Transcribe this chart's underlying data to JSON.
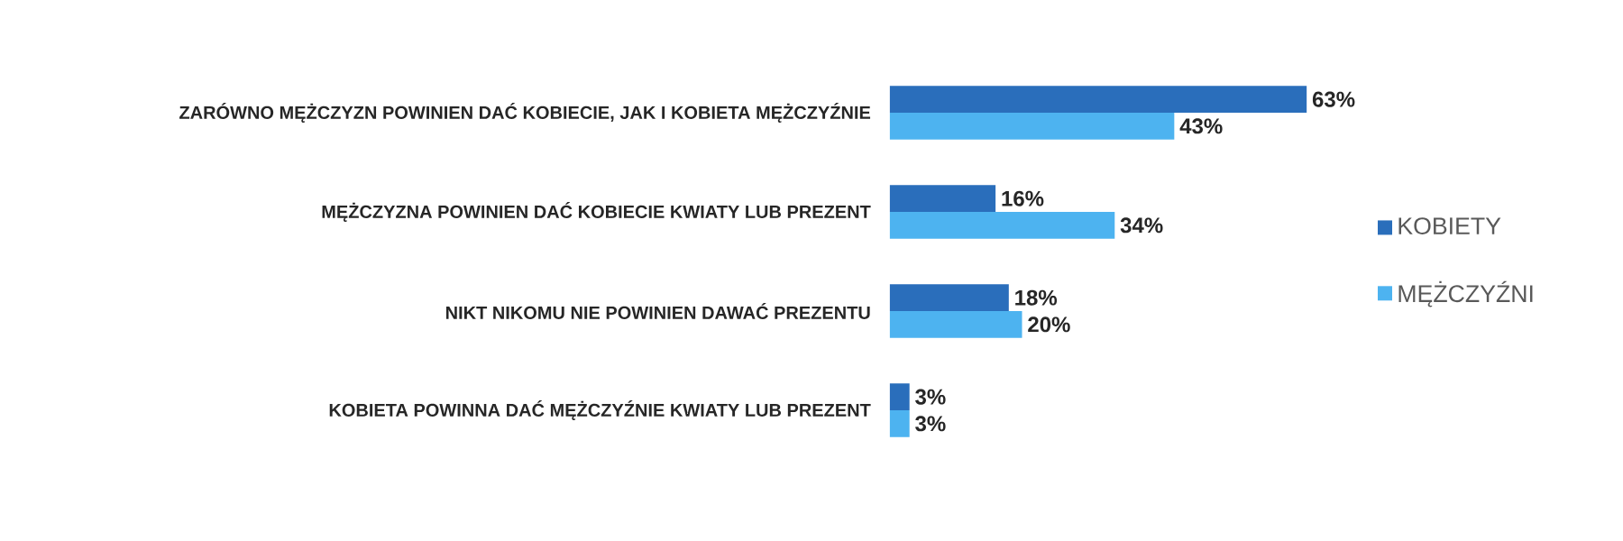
{
  "chart_data": {
    "type": "bar",
    "orientation": "horizontal",
    "categories": [
      "ZARÓWNO MĘŻCZYZN POWINIEN DAĆ KOBIECIE, JAK I KOBIETA MĘŻCZYŹNIE",
      "MĘŻCZYZNA POWINIEN DAĆ KOBIECIE KWIATY LUB PREZENT",
      "NIKT NIKOMU NIE POWINIEN DAWAĆ PREZENTU",
      "KOBIETA POWINNA DAĆ MĘŻCZYŹNIE KWIATY LUB PREZENT"
    ],
    "series": [
      {
        "name": "KOBIETY",
        "color": "#2a6ebb",
        "values": [
          63,
          16,
          18,
          3
        ],
        "value_labels": [
          "63%",
          "16%",
          "18%",
          "3%"
        ]
      },
      {
        "name": "MĘŻCZYŹNI",
        "color": "#4db3f0",
        "values": [
          43,
          34,
          20,
          3
        ],
        "value_labels": [
          "43%",
          "34%",
          "20%",
          "3%"
        ]
      }
    ],
    "legend": "right",
    "tick_labels": "y"
  }
}
